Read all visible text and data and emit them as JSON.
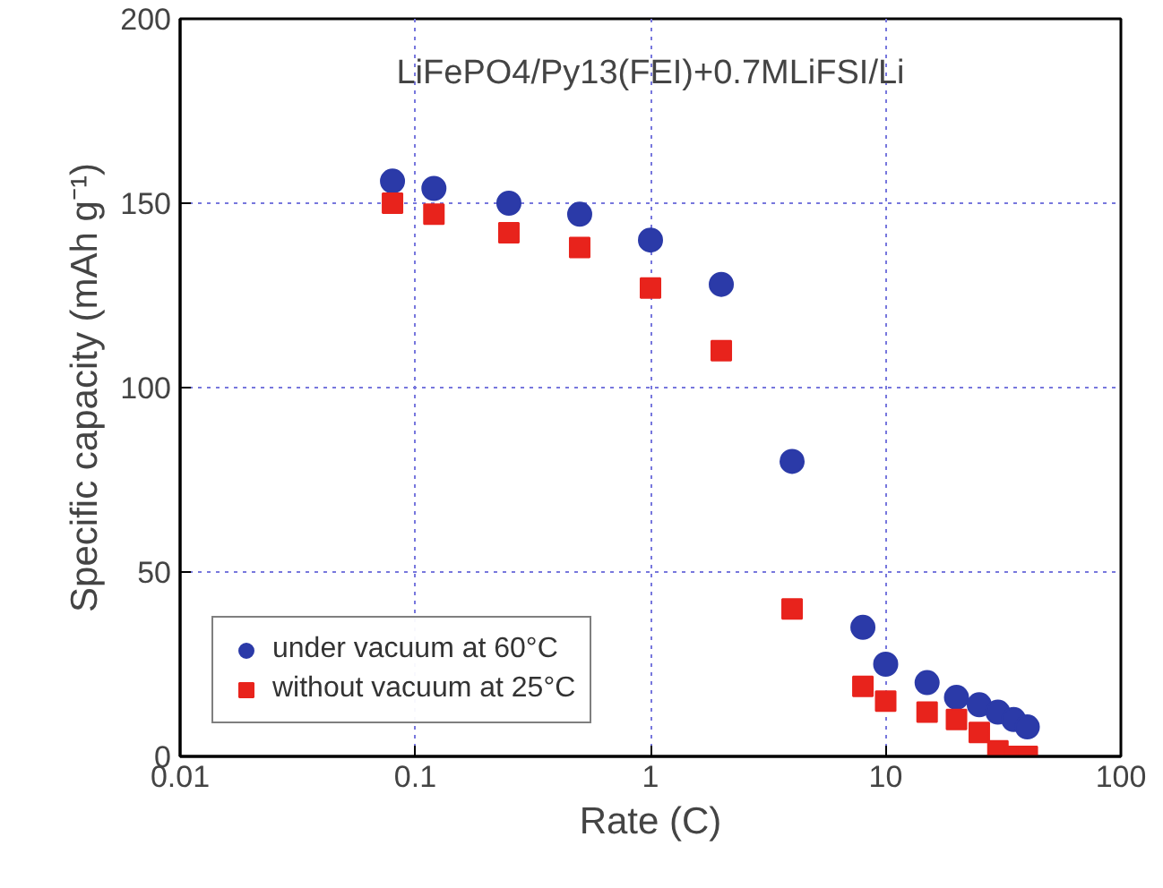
{
  "chart_data": {
    "type": "scatter",
    "xlabel": "Rate (C)",
    "ylabel": "Specific capacity (mAh g⁻¹)",
    "annotations": [
      "LiFePO4/Py13(FEI)+0.7MLiFSI/Li"
    ],
    "x": [
      0.08,
      0.12,
      0.25,
      0.5,
      1,
      2,
      4,
      8,
      10,
      15,
      20,
      25,
      30,
      35,
      40
    ],
    "series": [
      {
        "name": "under vacuum at 60°C",
        "color": "#2b3aa8",
        "marker": "circle",
        "values": [
          156,
          154,
          150,
          147,
          140,
          128,
          80,
          35,
          25,
          20,
          16,
          14,
          12,
          10,
          8
        ]
      },
      {
        "name": "without vacuum at 25°C",
        "color": "#e8231c",
        "marker": "square",
        "values": [
          150,
          147,
          142,
          138,
          127,
          110,
          40,
          19,
          15,
          12,
          10,
          6.5,
          1.5,
          0,
          0
        ]
      }
    ],
    "log": "x",
    "xlim": [
      0.01,
      100
    ],
    "xticks": [
      0.01,
      0.1,
      1,
      10,
      100
    ],
    "ylim": [
      0,
      200
    ],
    "yticks": [
      0,
      50,
      100,
      150,
      200
    ],
    "grid": true,
    "legend": "bottom left"
  }
}
